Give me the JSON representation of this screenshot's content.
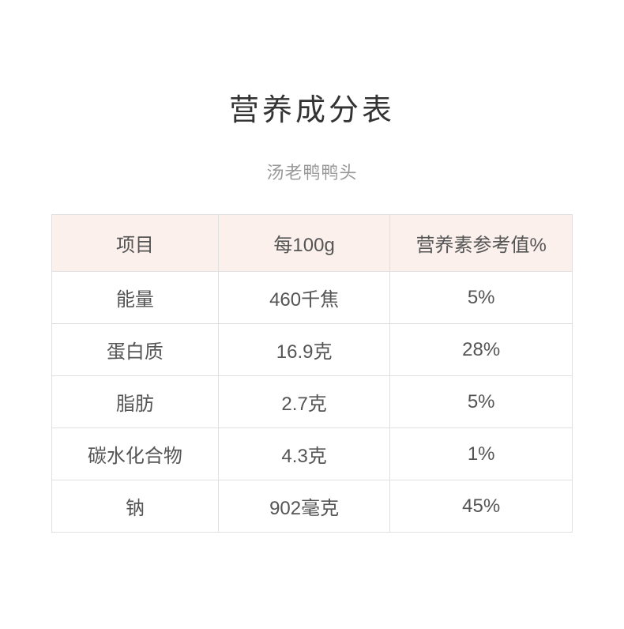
{
  "title": "营养成分表",
  "subtitle": "汤老鸭鸭头",
  "table": {
    "type": "table",
    "columns": [
      "项目",
      "每100g",
      "营养素参考值%"
    ],
    "rows": [
      [
        "能量",
        "460千焦",
        "5%"
      ],
      [
        "蛋白质",
        "16.9克",
        "28%"
      ],
      [
        "脂肪",
        "2.7克",
        "5%"
      ],
      [
        "碳水化合物",
        "4.3克",
        "1%"
      ],
      [
        "钠",
        "902毫克",
        "45%"
      ]
    ],
    "header_bg_color": "#fbf0ec",
    "border_color": "#e0e0e0",
    "text_color": "#555555",
    "title_color": "#333333",
    "subtitle_color": "#999999",
    "title_fontsize": 38,
    "subtitle_fontsize": 22,
    "cell_fontsize": 24,
    "background_color": "#ffffff",
    "column_widths": [
      "32%",
      "33%",
      "35%"
    ],
    "header_row_height": 72,
    "body_row_height": 66
  }
}
